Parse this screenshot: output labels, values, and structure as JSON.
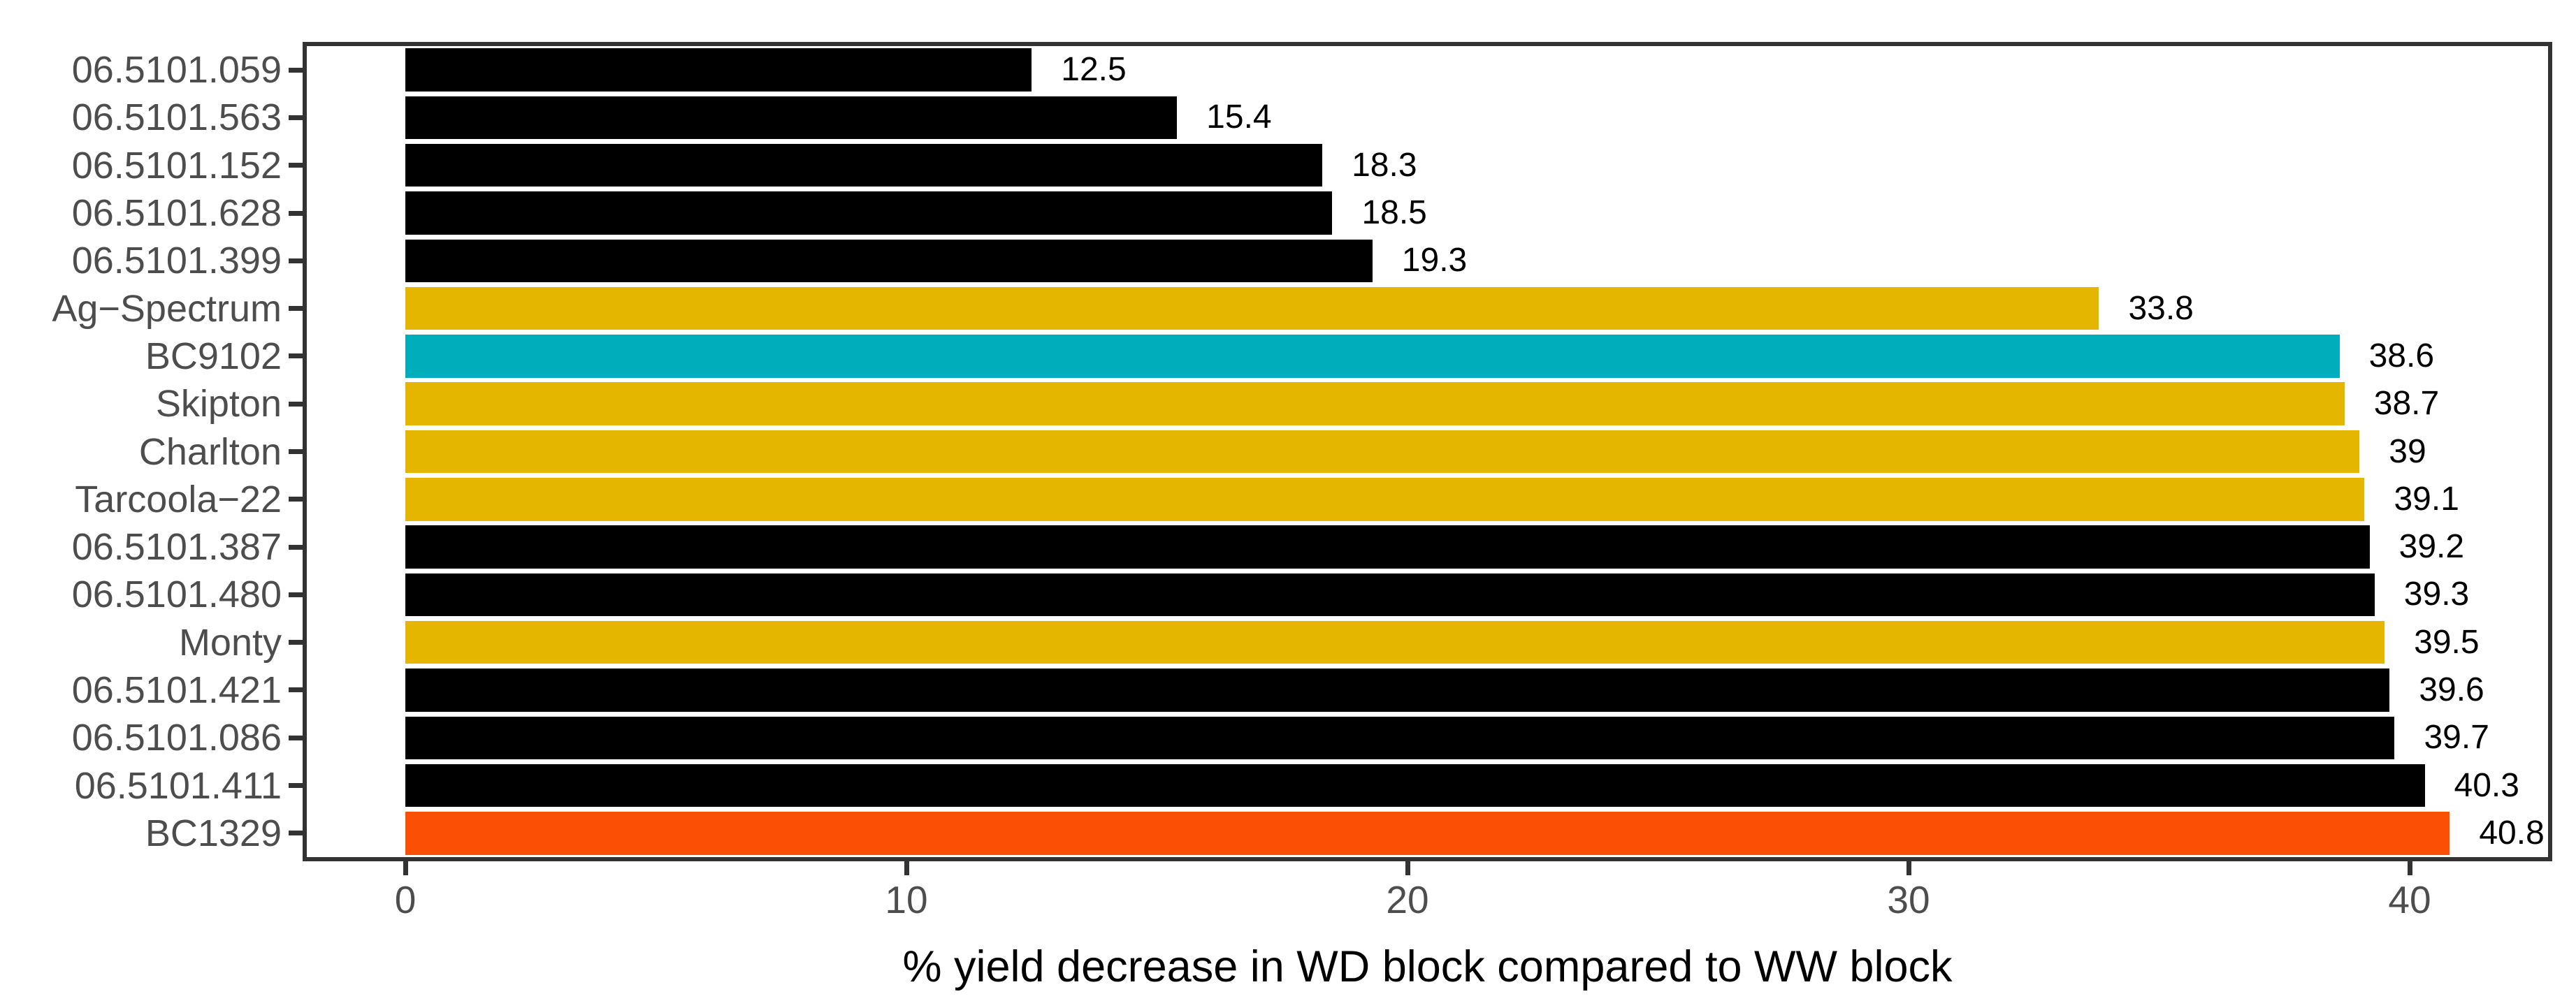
{
  "chart_data": {
    "type": "bar",
    "orientation": "horizontal",
    "title": "",
    "xlabel": "% yield decrease in WD block compared to WW block",
    "ylabel": "",
    "x_ticks": [
      0,
      10,
      20,
      30,
      40
    ],
    "xlim": [
      -2,
      42.9
    ],
    "grid": false,
    "legend": false,
    "bar_width_fraction": 0.9,
    "rows": [
      {
        "label": "06.5101.059",
        "value": 12.5,
        "value_label": "12.5",
        "color": "#000000"
      },
      {
        "label": "06.5101.563",
        "value": 15.4,
        "value_label": "15.4",
        "color": "#000000"
      },
      {
        "label": "06.5101.152",
        "value": 18.3,
        "value_label": "18.3",
        "color": "#000000"
      },
      {
        "label": "06.5101.628",
        "value": 18.5,
        "value_label": "18.5",
        "color": "#000000"
      },
      {
        "label": "06.5101.399",
        "value": 19.3,
        "value_label": "19.3",
        "color": "#000000"
      },
      {
        "label": "Ag−Spectrum",
        "value": 33.8,
        "value_label": "33.8",
        "color": "#E4B600"
      },
      {
        "label": "BC9102",
        "value": 38.6,
        "value_label": "38.6",
        "color": "#00ADBA"
      },
      {
        "label": "Skipton",
        "value": 38.7,
        "value_label": "38.7",
        "color": "#E4B600"
      },
      {
        "label": "Charlton",
        "value": 39,
        "value_label": "39",
        "color": "#E4B600"
      },
      {
        "label": "Tarcoola−22",
        "value": 39.1,
        "value_label": "39.1",
        "color": "#E4B600"
      },
      {
        "label": "06.5101.387",
        "value": 39.2,
        "value_label": "39.2",
        "color": "#000000"
      },
      {
        "label": "06.5101.480",
        "value": 39.3,
        "value_label": "39.3",
        "color": "#000000"
      },
      {
        "label": "Monty",
        "value": 39.5,
        "value_label": "39.5",
        "color": "#E4B600"
      },
      {
        "label": "06.5101.421",
        "value": 39.6,
        "value_label": "39.6",
        "color": "#000000"
      },
      {
        "label": "06.5101.086",
        "value": 39.7,
        "value_label": "39.7",
        "color": "#000000"
      },
      {
        "label": "06.5101.411",
        "value": 40.3,
        "value_label": "40.3",
        "color": "#000000"
      },
      {
        "label": "BC1329",
        "value": 40.8,
        "value_label": "40.8",
        "color": "#FB4F06"
      }
    ]
  },
  "colors": {
    "background": "#FFFFFF",
    "panel_border": "#333333",
    "axis_tick": "#333333",
    "axis_text": "#4D4D4D",
    "axis_title": "#000000",
    "value_label": "#000000"
  }
}
